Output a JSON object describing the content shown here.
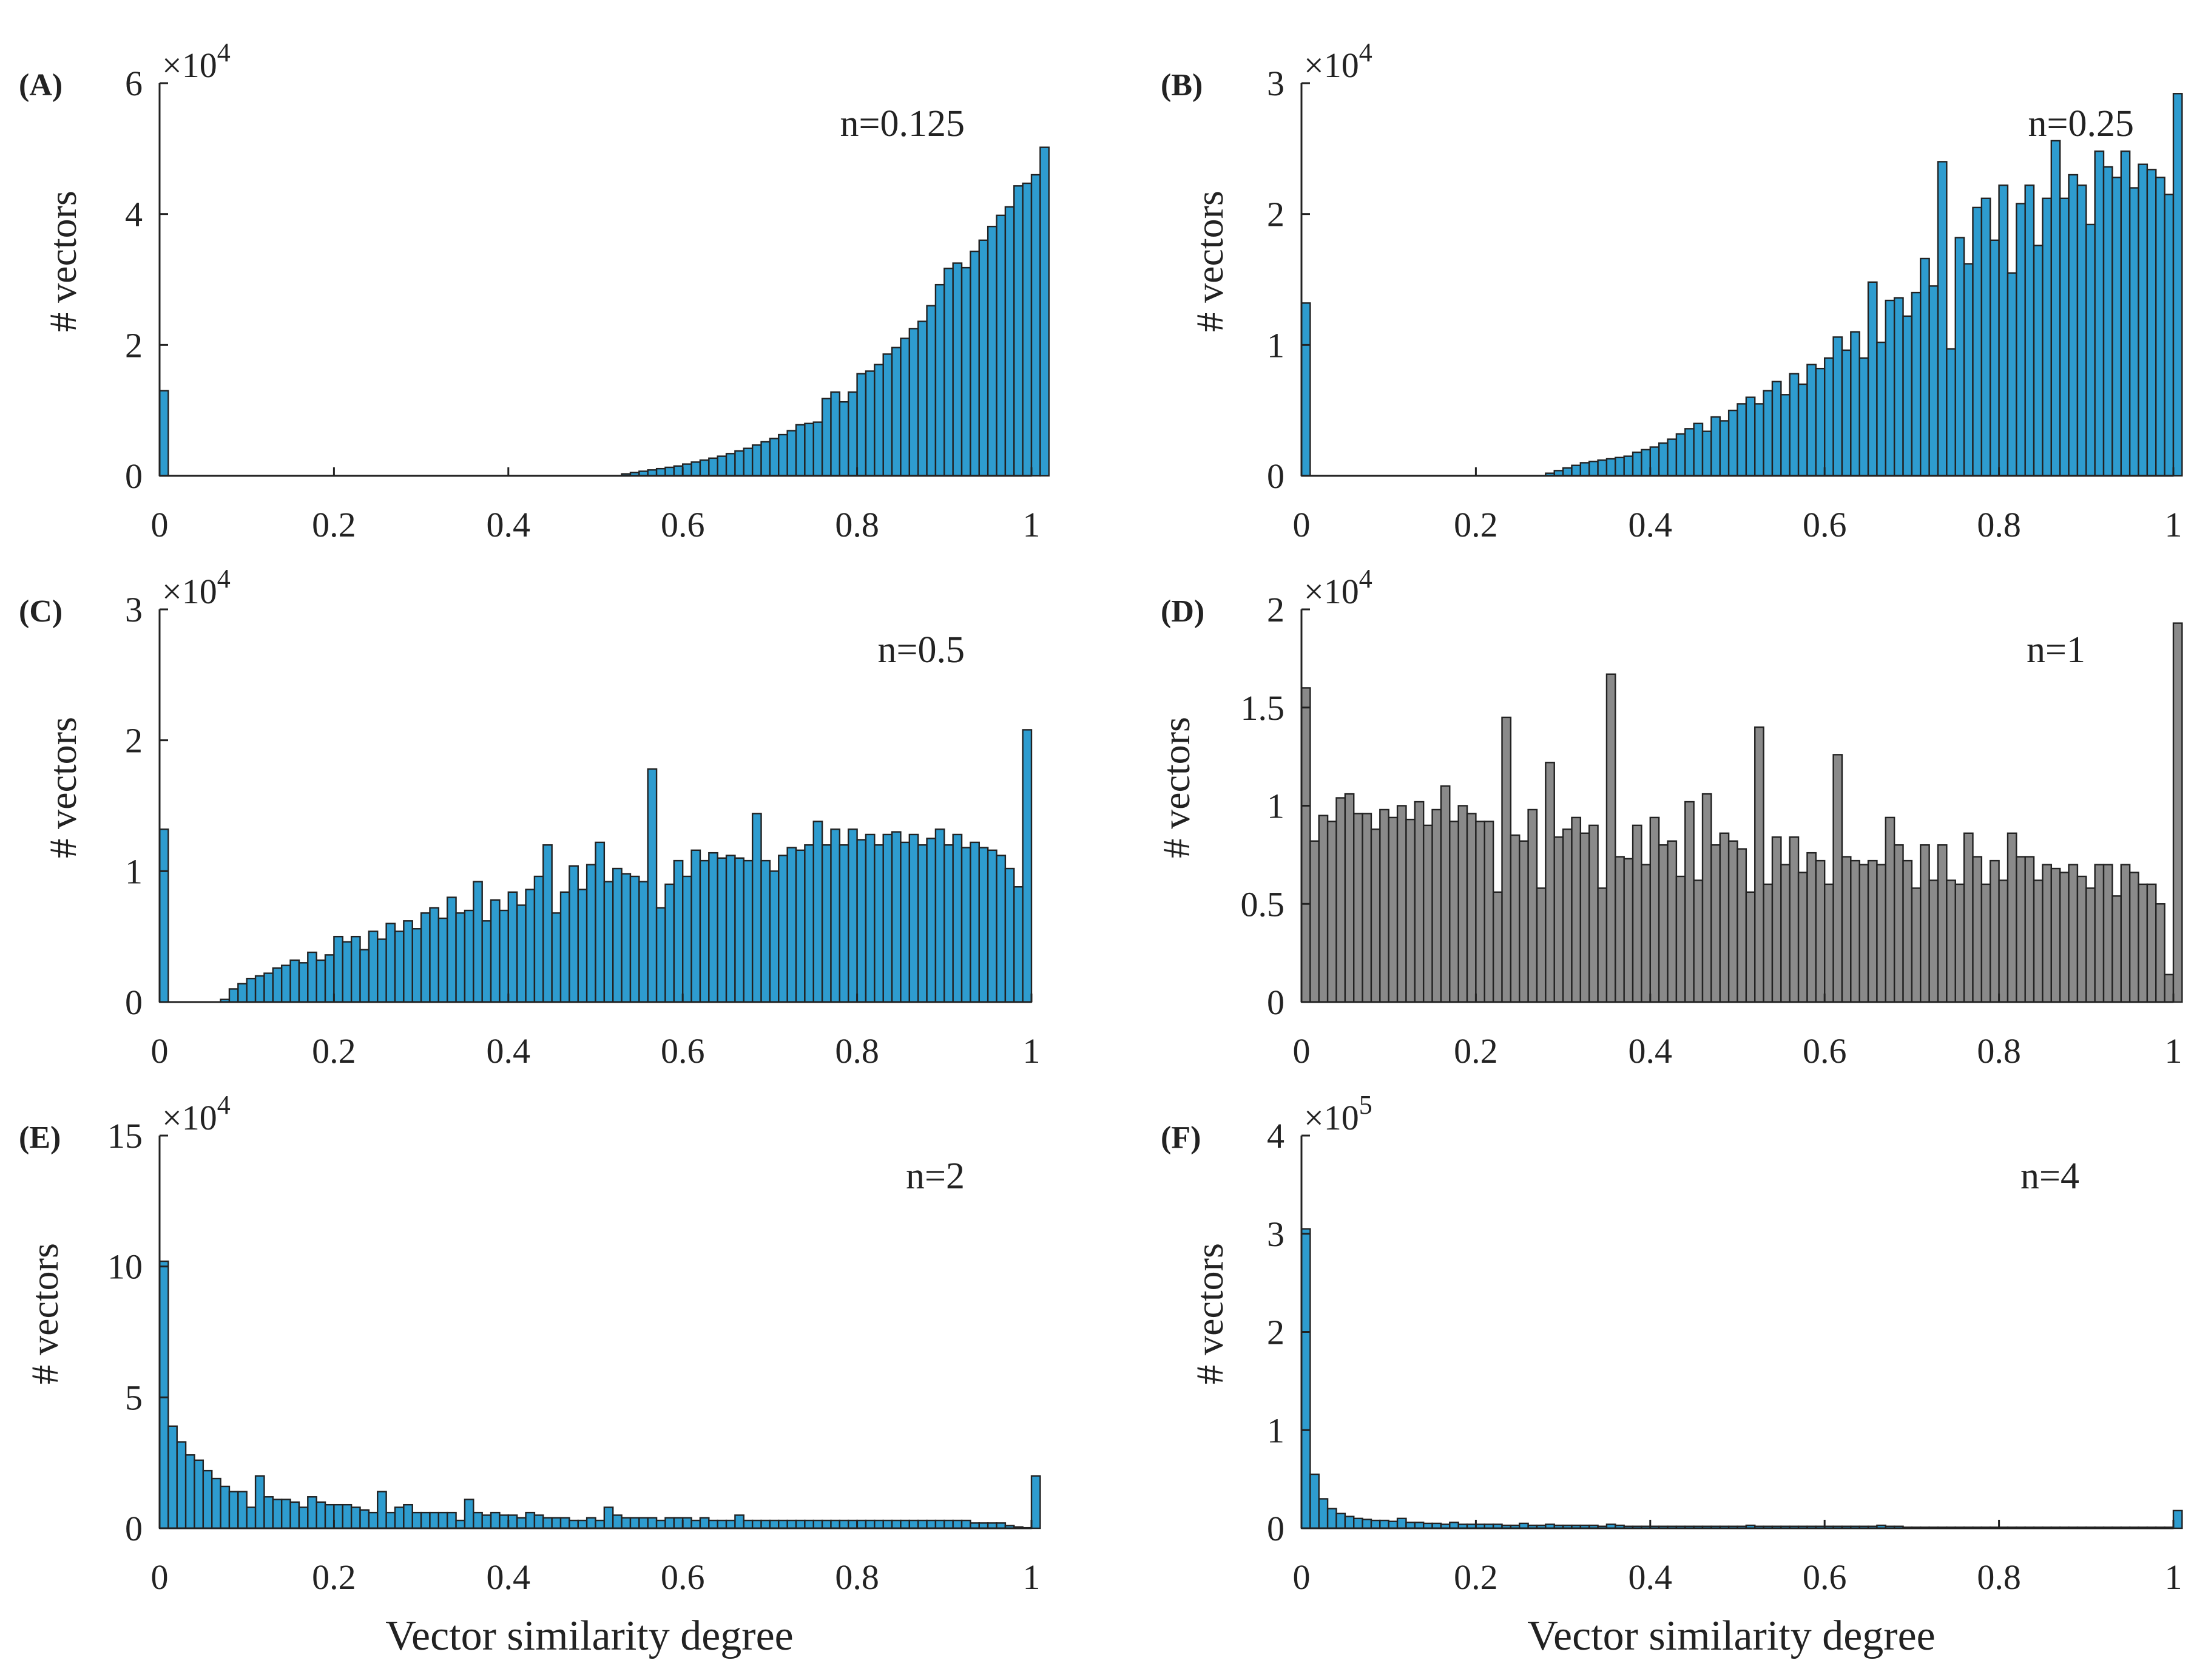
{
  "figure": {
    "background": "#ffffff",
    "axis_color": "#222222"
  },
  "chart_data": [
    {
      "panel": "(A)",
      "type": "bar",
      "annotation": "n=0.125",
      "ylabel": "# vectors",
      "xlabel": "",
      "exponent": {
        "base": "×10",
        "power": "4"
      },
      "xlim": [
        0,
        1
      ],
      "ylim": [
        0,
        6
      ],
      "bins": 100,
      "color": "#2e9ccf",
      "x_ticks": [
        0,
        0.2,
        0.4,
        0.6,
        0.8,
        1
      ],
      "x_tick_labels": [
        "0",
        "0.2",
        "0.4",
        "0.6",
        "0.8",
        "1"
      ],
      "y_ticks": [
        0,
        2,
        4,
        6
      ],
      "y_tick_labels": [
        "0",
        "2",
        "4",
        "6"
      ],
      "values": [
        1.3,
        0,
        0,
        0,
        0,
        0,
        0,
        0,
        0,
        0,
        0,
        0,
        0,
        0,
        0,
        0,
        0,
        0,
        0,
        0,
        0,
        0,
        0,
        0,
        0,
        0,
        0,
        0,
        0,
        0,
        0,
        0,
        0,
        0,
        0,
        0,
        0,
        0,
        0,
        0,
        0,
        0,
        0,
        0,
        0,
        0,
        0,
        0,
        0,
        0,
        0,
        0,
        0,
        0.03,
        0.05,
        0.07,
        0.09,
        0.11,
        0.13,
        0.15,
        0.18,
        0.21,
        0.24,
        0.27,
        0.3,
        0.34,
        0.38,
        0.42,
        0.47,
        0.52,
        0.57,
        0.63,
        0.69,
        0.78,
        0.8,
        0.82,
        1.18,
        1.28,
        1.13,
        1.28,
        1.56,
        1.6,
        1.7,
        1.86,
        1.96,
        2.1,
        2.25,
        2.36,
        2.6,
        2.92,
        3.17,
        3.25,
        3.18,
        3.43,
        3.6,
        3.81,
        3.98,
        4.11,
        4.43,
        4.47,
        4.6,
        5.02
      ]
    },
    {
      "panel": "(B)",
      "type": "bar",
      "annotation": "n=0.25",
      "ylabel": "# vectors",
      "xlabel": "",
      "exponent": {
        "base": "×10",
        "power": "4"
      },
      "xlim": [
        0,
        1
      ],
      "ylim": [
        0,
        3
      ],
      "bins": 100,
      "color": "#2e9ccf",
      "x_ticks": [
        0,
        0.2,
        0.4,
        0.6,
        0.8,
        1
      ],
      "x_tick_labels": [
        "0",
        "0.2",
        "0.4",
        "0.6",
        "0.8",
        "1"
      ],
      "y_ticks": [
        0,
        1,
        2,
        3
      ],
      "y_tick_labels": [
        "0",
        "1",
        "2",
        "3"
      ],
      "values": [
        1.32,
        0,
        0,
        0,
        0,
        0,
        0,
        0,
        0,
        0,
        0,
        0,
        0,
        0,
        0,
        0,
        0,
        0,
        0,
        0,
        0,
        0,
        0,
        0,
        0,
        0,
        0,
        0,
        0.02,
        0.04,
        0.06,
        0.08,
        0.1,
        0.11,
        0.12,
        0.13,
        0.14,
        0.15,
        0.18,
        0.2,
        0.22,
        0.25,
        0.28,
        0.32,
        0.36,
        0.4,
        0.34,
        0.45,
        0.42,
        0.5,
        0.55,
        0.6,
        0.55,
        0.65,
        0.72,
        0.62,
        0.78,
        0.7,
        0.85,
        0.82,
        0.9,
        1.06,
        0.96,
        1.1,
        0.9,
        1.48,
        1.02,
        1.34,
        1.36,
        1.22,
        1.4,
        1.66,
        1.45,
        2.4,
        0.97,
        1.82,
        1.62,
        2.05,
        2.12,
        1.8,
        2.22,
        1.55,
        2.08,
        2.22,
        1.76,
        2.12,
        2.56,
        2.12,
        2.3,
        2.22,
        1.92,
        2.48,
        2.36,
        2.28,
        2.48,
        2.2,
        2.38,
        2.34,
        2.28,
        2.15,
        2.92
      ]
    },
    {
      "panel": "(C)",
      "type": "bar",
      "annotation": "n=0.5",
      "ylabel": "# vectors",
      "xlabel": "",
      "exponent": {
        "base": "×10",
        "power": "4"
      },
      "xlim": [
        0,
        1
      ],
      "ylim": [
        0,
        3
      ],
      "bins": 100,
      "color": "#2e9ccf",
      "x_ticks": [
        0,
        0.2,
        0.4,
        0.6,
        0.8,
        1
      ],
      "x_tick_labels": [
        "0",
        "0.2",
        "0.4",
        "0.6",
        "0.8",
        "1"
      ],
      "y_ticks": [
        0,
        1,
        2,
        3
      ],
      "y_tick_labels": [
        "0",
        "1",
        "2",
        "3"
      ],
      "values": [
        1.32,
        0,
        0,
        0,
        0,
        0,
        0,
        0.02,
        0.1,
        0.14,
        0.18,
        0.2,
        0.22,
        0.26,
        0.28,
        0.32,
        0.3,
        0.38,
        0.32,
        0.36,
        0.5,
        0.46,
        0.5,
        0.4,
        0.54,
        0.48,
        0.6,
        0.54,
        0.62,
        0.56,
        0.68,
        0.72,
        0.64,
        0.8,
        0.68,
        0.7,
        0.92,
        0.62,
        0.78,
        0.7,
        0.84,
        0.74,
        0.86,
        0.96,
        1.2,
        0.68,
        0.84,
        1.04,
        0.86,
        1.05,
        1.22,
        0.92,
        1.02,
        0.98,
        0.96,
        0.92,
        1.78,
        0.72,
        0.9,
        1.08,
        0.96,
        1.16,
        1.08,
        1.14,
        1.1,
        1.12,
        1.1,
        1.08,
        1.44,
        1.08,
        1.0,
        1.12,
        1.18,
        1.16,
        1.2,
        1.38,
        1.2,
        1.32,
        1.2,
        1.32,
        1.24,
        1.28,
        1.2,
        1.28,
        1.3,
        1.22,
        1.28,
        1.2,
        1.25,
        1.32,
        1.2,
        1.28,
        1.18,
        1.22,
        1.18,
        1.16,
        1.12,
        1.02,
        0.88,
        2.08
      ]
    },
    {
      "panel": "(D)",
      "type": "bar",
      "annotation": "n=1",
      "ylabel": "# vectors",
      "xlabel": "",
      "exponent": {
        "base": "×10",
        "power": "4"
      },
      "xlim": [
        0,
        1
      ],
      "ylim": [
        0,
        2
      ],
      "bins": 100,
      "color": "#8a8a8a",
      "x_ticks": [
        0,
        0.2,
        0.4,
        0.6,
        0.8,
        1
      ],
      "x_tick_labels": [
        "0",
        "0.2",
        "0.4",
        "0.6",
        "0.8",
        "1"
      ],
      "y_ticks": [
        0,
        0.5,
        1,
        1.5,
        2
      ],
      "y_tick_labels": [
        "0",
        "0.5",
        "1",
        "1.5",
        "2"
      ],
      "values": [
        1.6,
        0.82,
        0.95,
        0.92,
        1.04,
        1.06,
        0.96,
        0.96,
        0.88,
        0.98,
        0.94,
        1.0,
        0.93,
        1.02,
        0.9,
        0.98,
        1.1,
        0.92,
        1.0,
        0.96,
        0.92,
        0.92,
        0.56,
        1.45,
        0.85,
        0.82,
        0.98,
        0.58,
        1.22,
        0.84,
        0.88,
        0.94,
        0.86,
        0.9,
        0.58,
        1.67,
        0.74,
        0.73,
        0.9,
        0.7,
        0.94,
        0.8,
        0.82,
        0.64,
        1.02,
        0.62,
        1.06,
        0.8,
        0.86,
        0.82,
        0.78,
        0.56,
        1.4,
        0.6,
        0.84,
        0.7,
        0.84,
        0.66,
        0.76,
        0.72,
        0.6,
        1.26,
        0.74,
        0.72,
        0.7,
        0.72,
        0.7,
        0.94,
        0.8,
        0.72,
        0.58,
        0.8,
        0.62,
        0.8,
        0.62,
        0.6,
        0.86,
        0.74,
        0.6,
        0.72,
        0.62,
        0.86,
        0.74,
        0.74,
        0.62,
        0.7,
        0.68,
        0.66,
        0.7,
        0.64,
        0.58,
        0.7,
        0.7,
        0.54,
        0.7,
        0.66,
        0.6,
        0.6,
        0.5,
        0.14,
        1.93
      ]
    },
    {
      "panel": "(E)",
      "type": "bar",
      "annotation": "n=2",
      "ylabel": "# vectors",
      "xlabel": "Vector similarity degree",
      "exponent": {
        "base": "×10",
        "power": "4"
      },
      "xlim": [
        0,
        1
      ],
      "ylim": [
        0,
        15
      ],
      "bins": 100,
      "color": "#2e9ccf",
      "x_ticks": [
        0,
        0.2,
        0.4,
        0.6,
        0.8,
        1
      ],
      "x_tick_labels": [
        "0",
        "0.2",
        "0.4",
        "0.6",
        "0.8",
        "1"
      ],
      "y_ticks": [
        0,
        5,
        10,
        15
      ],
      "y_tick_labels": [
        "0",
        "5",
        "10",
        "15"
      ],
      "values": [
        10.2,
        3.9,
        3.3,
        2.8,
        2.6,
        2.2,
        1.9,
        1.6,
        1.4,
        1.4,
        0.8,
        2.0,
        1.2,
        1.1,
        1.1,
        1.0,
        0.8,
        1.2,
        1.0,
        0.9,
        0.9,
        0.9,
        0.8,
        0.7,
        0.6,
        1.4,
        0.6,
        0.8,
        0.9,
        0.6,
        0.6,
        0.6,
        0.6,
        0.6,
        0.3,
        1.1,
        0.6,
        0.5,
        0.6,
        0.5,
        0.5,
        0.4,
        0.6,
        0.5,
        0.4,
        0.4,
        0.4,
        0.3,
        0.3,
        0.4,
        0.3,
        0.8,
        0.5,
        0.4,
        0.4,
        0.4,
        0.4,
        0.3,
        0.4,
        0.4,
        0.4,
        0.3,
        0.4,
        0.3,
        0.3,
        0.3,
        0.5,
        0.3,
        0.3,
        0.3,
        0.3,
        0.3,
        0.3,
        0.3,
        0.3,
        0.3,
        0.3,
        0.3,
        0.3,
        0.3,
        0.3,
        0.3,
        0.3,
        0.3,
        0.3,
        0.3,
        0.3,
        0.3,
        0.3,
        0.3,
        0.3,
        0.3,
        0.3,
        0.2,
        0.2,
        0.2,
        0.2,
        0.1,
        0.05,
        0.02,
        2.0
      ]
    },
    {
      "panel": "(F)",
      "type": "bar",
      "annotation": "n=4",
      "ylabel": "# vectors",
      "xlabel": "Vector similarity degree",
      "exponent": {
        "base": "×10",
        "power": "5"
      },
      "xlim": [
        0,
        1
      ],
      "ylim": [
        0,
        4
      ],
      "bins": 100,
      "color": "#2e9ccf",
      "x_ticks": [
        0,
        0.2,
        0.4,
        0.6,
        0.8,
        1
      ],
      "x_tick_labels": [
        "0",
        "0.2",
        "0.4",
        "0.6",
        "0.8",
        "1"
      ],
      "y_ticks": [
        0,
        1,
        2,
        3,
        4
      ],
      "y_tick_labels": [
        "0",
        "1",
        "2",
        "3",
        "4"
      ],
      "values": [
        3.05,
        0.55,
        0.3,
        0.2,
        0.15,
        0.12,
        0.1,
        0.09,
        0.08,
        0.08,
        0.07,
        0.1,
        0.06,
        0.06,
        0.05,
        0.05,
        0.04,
        0.06,
        0.04,
        0.04,
        0.04,
        0.04,
        0.04,
        0.03,
        0.03,
        0.05,
        0.03,
        0.03,
        0.04,
        0.03,
        0.03,
        0.03,
        0.03,
        0.03,
        0.02,
        0.04,
        0.03,
        0.02,
        0.02,
        0.02,
        0.02,
        0.02,
        0.02,
        0.02,
        0.02,
        0.02,
        0.02,
        0.02,
        0.02,
        0.02,
        0.02,
        0.03,
        0.02,
        0.02,
        0.02,
        0.02,
        0.02,
        0.02,
        0.02,
        0.02,
        0.02,
        0.02,
        0.02,
        0.02,
        0.02,
        0.02,
        0.03,
        0.02,
        0.02,
        0.01,
        0.01,
        0.01,
        0.01,
        0.01,
        0.01,
        0.01,
        0.01,
        0.01,
        0.01,
        0.01,
        0.01,
        0.01,
        0.01,
        0.01,
        0.01,
        0.01,
        0.01,
        0.01,
        0.01,
        0.01,
        0.01,
        0.01,
        0.01,
        0.01,
        0.01,
        0.01,
        0.01,
        0.01,
        0.01,
        0.01,
        0.18
      ]
    }
  ]
}
